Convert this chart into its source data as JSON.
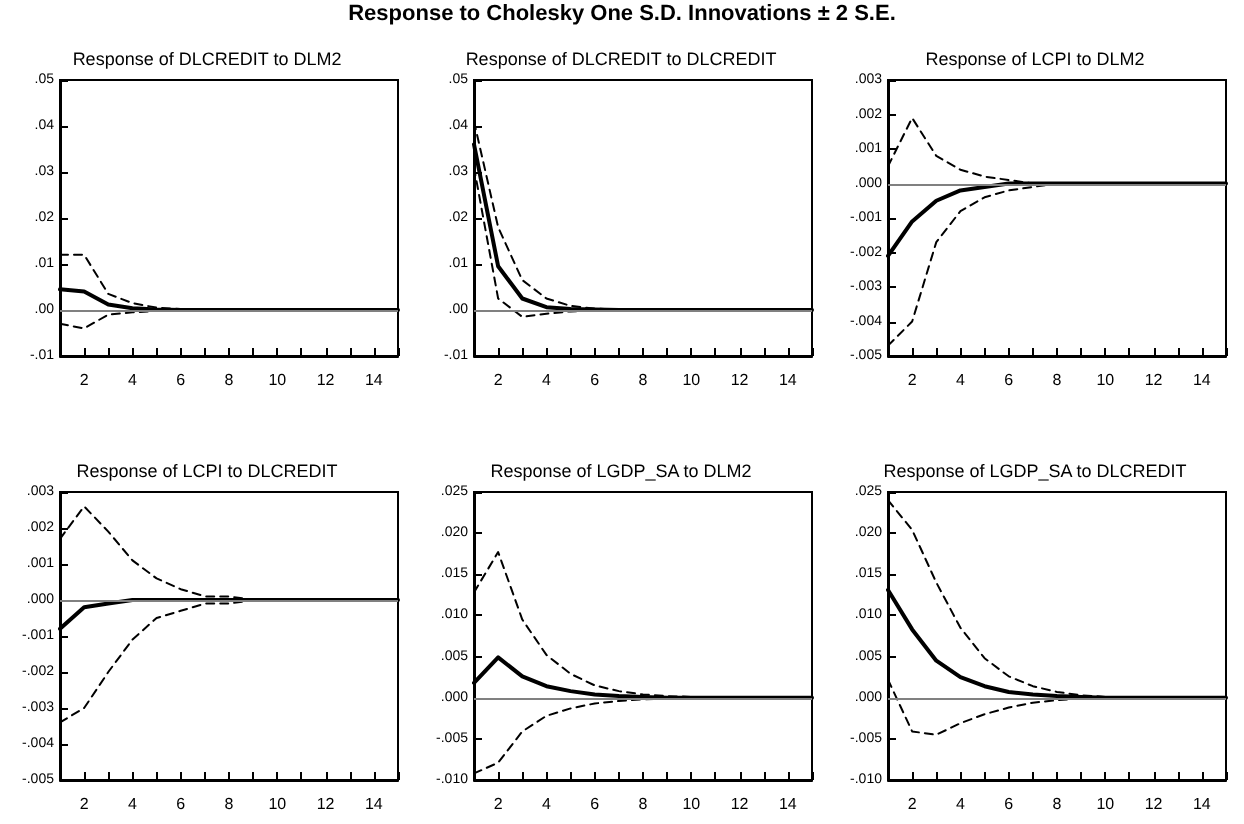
{
  "chart_data": [
    {
      "type": "line",
      "title": "Response of DLCREDIT to DLM2",
      "annotations": [
        "Response to Cholesky One S.D. Innovations ± 2 S.E."
      ],
      "x": [
        1,
        2,
        3,
        4,
        5,
        6,
        7,
        8,
        9,
        10,
        11,
        12,
        13,
        14,
        15
      ],
      "series": [
        {
          "color": "#000000",
          "line_style": "solid",
          "values": [
            0.0045,
            0.004,
            0.0012,
            0.0004,
            0.0001,
            0,
            0,
            0,
            0,
            0,
            0,
            0,
            0,
            0,
            0
          ]
        },
        {
          "color": "#000000",
          "line_style": "dashed",
          "values": [
            0.012,
            0.012,
            0.0035,
            0.0015,
            0.0005,
            0.0002,
            0.0001,
            0,
            0,
            0,
            0,
            0,
            0,
            0,
            0
          ]
        },
        {
          "color": "#000000",
          "line_style": "dashed",
          "values": [
            -0.003,
            -0.004,
            -0.001,
            -0.0005,
            -0.0002,
            -0.0001,
            0,
            0,
            0,
            0,
            0,
            0,
            0,
            0,
            0
          ]
        }
      ],
      "xlim": [
        1,
        15
      ],
      "xticks": [
        {
          "value": 1,
          "label": null
        },
        2,
        {
          "value": 3,
          "label": null
        },
        4,
        {
          "value": 5,
          "label": null
        },
        6,
        {
          "value": 7,
          "label": null
        },
        8,
        {
          "value": 9,
          "label": null
        },
        10,
        {
          "value": 11,
          "label": null
        },
        12,
        {
          "value": 13,
          "label": null
        },
        14,
        {
          "value": 15,
          "label": null
        }
      ],
      "ylim": [
        -0.01,
        0.05
      ],
      "yticks": [
        {
          "value": -0.01,
          "label": "-.01"
        },
        {
          "value": 0,
          "label": ".00"
        },
        {
          "value": 0.01,
          "label": ".01"
        },
        {
          "value": 0.02,
          "label": ".02"
        },
        {
          "value": 0.03,
          "label": ".03"
        },
        {
          "value": 0.04,
          "label": ".04"
        },
        {
          "value": 0.05,
          "label": ".05"
        }
      ],
      "ref_lines": [
        {
          "axis": "y",
          "value": 0,
          "color": "#808080"
        }
      ],
      "grid": false,
      "marker": "none"
    },
    {
      "type": "line",
      "title": "Response of DLCREDIT to DLCREDIT",
      "x": [
        1,
        2,
        3,
        4,
        5,
        6,
        7,
        8,
        9,
        10,
        11,
        12,
        13,
        14,
        15
      ],
      "series": [
        {
          "color": "#000000",
          "line_style": "solid",
          "values": [
            0.036,
            0.0095,
            0.0025,
            0.0006,
            0.0002,
            0.0001,
            0,
            0,
            0,
            0,
            0,
            0,
            0,
            0,
            0
          ]
        },
        {
          "color": "#000000",
          "line_style": "dashed",
          "values": [
            0.041,
            0.018,
            0.0065,
            0.0025,
            0.0009,
            0.0003,
            0.0001,
            0,
            0,
            0,
            0,
            0,
            0,
            0,
            0
          ]
        },
        {
          "color": "#000000",
          "line_style": "dashed",
          "values": [
            0.031,
            0.0025,
            -0.0015,
            -0.0008,
            -0.0003,
            -0.0001,
            0,
            0,
            0,
            0,
            0,
            0,
            0,
            0,
            0
          ]
        }
      ],
      "xlim": [
        1,
        15
      ],
      "xticks": [
        {
          "value": 1,
          "label": null
        },
        2,
        {
          "value": 3,
          "label": null
        },
        4,
        {
          "value": 5,
          "label": null
        },
        6,
        {
          "value": 7,
          "label": null
        },
        8,
        {
          "value": 9,
          "label": null
        },
        10,
        {
          "value": 11,
          "label": null
        },
        12,
        {
          "value": 13,
          "label": null
        },
        14,
        {
          "value": 15,
          "label": null
        }
      ],
      "ylim": [
        -0.01,
        0.05
      ],
      "yticks": [
        {
          "value": -0.01,
          "label": "-.01"
        },
        {
          "value": 0,
          "label": ".00"
        },
        {
          "value": 0.01,
          "label": ".01"
        },
        {
          "value": 0.02,
          "label": ".02"
        },
        {
          "value": 0.03,
          "label": ".03"
        },
        {
          "value": 0.04,
          "label": ".04"
        },
        {
          "value": 0.05,
          "label": ".05"
        }
      ],
      "ref_lines": [
        {
          "axis": "y",
          "value": 0,
          "color": "#808080"
        }
      ],
      "grid": false,
      "marker": "none"
    },
    {
      "type": "line",
      "title": "Response of LCPI to DLM2",
      "x": [
        1,
        2,
        3,
        4,
        5,
        6,
        7,
        8,
        9,
        10,
        11,
        12,
        13,
        14,
        15
      ],
      "series": [
        {
          "color": "#000000",
          "line_style": "solid",
          "values": [
            -0.0021,
            -0.0011,
            -0.0005,
            -0.0002,
            -0.0001,
            0,
            0,
            0,
            0,
            0,
            0,
            0,
            0,
            0,
            0
          ]
        },
        {
          "color": "#000000",
          "line_style": "dashed",
          "values": [
            0.0005,
            0.0019,
            0.0008,
            0.0004,
            0.0002,
            0.0001,
            0,
            0,
            0,
            0,
            0,
            0,
            0,
            0,
            0
          ]
        },
        {
          "color": "#000000",
          "line_style": "dashed",
          "values": [
            -0.0047,
            -0.004,
            -0.0017,
            -0.0008,
            -0.0004,
            -0.0002,
            -0.0001,
            0,
            0,
            0,
            0,
            0,
            0,
            0,
            0
          ]
        }
      ],
      "xlim": [
        1,
        15
      ],
      "xticks": [
        {
          "value": 1,
          "label": null
        },
        2,
        {
          "value": 3,
          "label": null
        },
        4,
        {
          "value": 5,
          "label": null
        },
        6,
        {
          "value": 7,
          "label": null
        },
        8,
        {
          "value": 9,
          "label": null
        },
        10,
        {
          "value": 11,
          "label": null
        },
        12,
        {
          "value": 13,
          "label": null
        },
        14,
        {
          "value": 15,
          "label": null
        }
      ],
      "ylim": [
        -0.005,
        0.003
      ],
      "yticks": [
        {
          "value": -0.005,
          "label": "-.005"
        },
        {
          "value": -0.004,
          "label": "-.004"
        },
        {
          "value": -0.003,
          "label": "-.003"
        },
        {
          "value": -0.002,
          "label": "-.002"
        },
        {
          "value": -0.001,
          "label": "-.001"
        },
        {
          "value": 0,
          "label": ".000"
        },
        {
          "value": 0.001,
          "label": ".001"
        },
        {
          "value": 0.002,
          "label": ".002"
        },
        {
          "value": 0.003,
          "label": ".003"
        }
      ],
      "ref_lines": [
        {
          "axis": "y",
          "value": 0,
          "color": "#808080"
        }
      ],
      "grid": false,
      "marker": "none"
    },
    {
      "type": "line",
      "title": "Response of LCPI to DLCREDIT",
      "x": [
        1,
        2,
        3,
        4,
        5,
        6,
        7,
        8,
        9,
        10,
        11,
        12,
        13,
        14,
        15
      ],
      "series": [
        {
          "color": "#000000",
          "line_style": "solid",
          "values": [
            -0.0008,
            -0.0002,
            -0.0001,
            0,
            0,
            0,
            0,
            0,
            0,
            0,
            0,
            0,
            0,
            0,
            0
          ]
        },
        {
          "color": "#000000",
          "line_style": "dashed",
          "values": [
            0.0017,
            0.0026,
            0.0019,
            0.0011,
            0.0006,
            0.0003,
            0.0001,
            0.0001,
            0,
            0,
            0,
            0,
            0,
            0,
            0
          ]
        },
        {
          "color": "#000000",
          "line_style": "dashed",
          "values": [
            -0.0034,
            -0.003,
            -0.002,
            -0.0011,
            -0.0005,
            -0.0003,
            -0.0001,
            -0.0001,
            0,
            0,
            0,
            0,
            0,
            0,
            0
          ]
        }
      ],
      "xlim": [
        1,
        15
      ],
      "xticks": [
        {
          "value": 1,
          "label": null
        },
        2,
        {
          "value": 3,
          "label": null
        },
        4,
        {
          "value": 5,
          "label": null
        },
        6,
        {
          "value": 7,
          "label": null
        },
        8,
        {
          "value": 9,
          "label": null
        },
        10,
        {
          "value": 11,
          "label": null
        },
        12,
        {
          "value": 13,
          "label": null
        },
        14,
        {
          "value": 15,
          "label": null
        }
      ],
      "ylim": [
        -0.005,
        0.003
      ],
      "yticks": [
        {
          "value": -0.005,
          "label": "-.005"
        },
        {
          "value": -0.004,
          "label": "-.004"
        },
        {
          "value": -0.003,
          "label": "-.003"
        },
        {
          "value": -0.002,
          "label": "-.002"
        },
        {
          "value": -0.001,
          "label": "-.001"
        },
        {
          "value": 0,
          "label": ".000"
        },
        {
          "value": 0.001,
          "label": ".001"
        },
        {
          "value": 0.002,
          "label": ".002"
        },
        {
          "value": 0.003,
          "label": ".003"
        }
      ],
      "ref_lines": [
        {
          "axis": "y",
          "value": 0,
          "color": "#808080"
        }
      ],
      "grid": false,
      "marker": "none"
    },
    {
      "type": "line",
      "title": "Response of LGDP_SA to DLM2",
      "x": [
        1,
        2,
        3,
        4,
        5,
        6,
        7,
        8,
        9,
        10,
        11,
        12,
        13,
        14,
        15
      ],
      "series": [
        {
          "color": "#000000",
          "line_style": "solid",
          "values": [
            0.0018,
            0.0049,
            0.0026,
            0.0014,
            0.0008,
            0.0004,
            0.0002,
            0.0001,
            0,
            0,
            0,
            0,
            0,
            0,
            0
          ]
        },
        {
          "color": "#000000",
          "line_style": "dashed",
          "values": [
            0.0128,
            0.0177,
            0.0095,
            0.0052,
            0.0029,
            0.0015,
            0.0008,
            0.0004,
            0.0002,
            0.0001,
            0,
            0,
            0,
            0,
            0
          ]
        },
        {
          "color": "#000000",
          "line_style": "dashed",
          "values": [
            -0.0092,
            -0.0079,
            -0.0041,
            -0.0022,
            -0.0013,
            -0.0007,
            -0.0004,
            -0.0002,
            -0.0001,
            0,
            0,
            0,
            0,
            0,
            0
          ]
        }
      ],
      "xlim": [
        1,
        15
      ],
      "xticks": [
        {
          "value": 1,
          "label": null
        },
        2,
        {
          "value": 3,
          "label": null
        },
        4,
        {
          "value": 5,
          "label": null
        },
        6,
        {
          "value": 7,
          "label": null
        },
        8,
        {
          "value": 9,
          "label": null
        },
        10,
        {
          "value": 11,
          "label": null
        },
        12,
        {
          "value": 13,
          "label": null
        },
        14,
        {
          "value": 15,
          "label": null
        }
      ],
      "ylim": [
        -0.01,
        0.025
      ],
      "yticks": [
        {
          "value": -0.01,
          "label": "-.010"
        },
        {
          "value": -0.005,
          "label": "-.005"
        },
        {
          "value": 0,
          "label": ".000"
        },
        {
          "value": 0.005,
          "label": ".005"
        },
        {
          "value": 0.01,
          "label": ".010"
        },
        {
          "value": 0.015,
          "label": ".015"
        },
        {
          "value": 0.02,
          "label": ".020"
        },
        {
          "value": 0.025,
          "label": ".025"
        }
      ],
      "ref_lines": [
        {
          "axis": "y",
          "value": 0,
          "color": "#808080"
        }
      ],
      "grid": false,
      "marker": "none"
    },
    {
      "type": "line",
      "title": "Response of LGDP_SA to DLCREDIT",
      "x": [
        1,
        2,
        3,
        4,
        5,
        6,
        7,
        8,
        9,
        10,
        11,
        12,
        13,
        14,
        15
      ],
      "series": [
        {
          "color": "#000000",
          "line_style": "solid",
          "values": [
            0.0131,
            0.0083,
            0.0045,
            0.0025,
            0.0014,
            0.0007,
            0.0004,
            0.0002,
            0.0001,
            0,
            0,
            0,
            0,
            0,
            0
          ]
        },
        {
          "color": "#000000",
          "line_style": "dashed",
          "values": [
            0.024,
            0.0204,
            0.014,
            0.0085,
            0.0048,
            0.0026,
            0.0014,
            0.0007,
            0.0003,
            0.0001,
            0,
            0,
            0,
            0,
            0
          ]
        },
        {
          "color": "#000000",
          "line_style": "dashed",
          "values": [
            0.0022,
            -0.0041,
            -0.0045,
            -0.0031,
            -0.002,
            -0.0012,
            -0.0006,
            -0.0003,
            -0.0001,
            0,
            0,
            0,
            0,
            0,
            0
          ]
        }
      ],
      "xlim": [
        1,
        15
      ],
      "xticks": [
        {
          "value": 1,
          "label": null
        },
        2,
        {
          "value": 3,
          "label": null
        },
        4,
        {
          "value": 5,
          "label": null
        },
        6,
        {
          "value": 7,
          "label": null
        },
        8,
        {
          "value": 9,
          "label": null
        },
        10,
        {
          "value": 11,
          "label": null
        },
        12,
        {
          "value": 13,
          "label": null
        },
        14,
        {
          "value": 15,
          "label": null
        }
      ],
      "ylim": [
        -0.01,
        0.025
      ],
      "yticks": [
        {
          "value": -0.01,
          "label": "-.010"
        },
        {
          "value": -0.005,
          "label": "-.005"
        },
        {
          "value": 0,
          "label": ".000"
        },
        {
          "value": 0.005,
          "label": ".005"
        },
        {
          "value": 0.01,
          "label": ".010"
        },
        {
          "value": 0.015,
          "label": ".015"
        },
        {
          "value": 0.02,
          "label": ".020"
        },
        {
          "value": 0.025,
          "label": ".025"
        }
      ],
      "ref_lines": [
        {
          "axis": "y",
          "value": 0,
          "color": "#808080"
        }
      ],
      "grid": false,
      "marker": "none"
    }
  ]
}
